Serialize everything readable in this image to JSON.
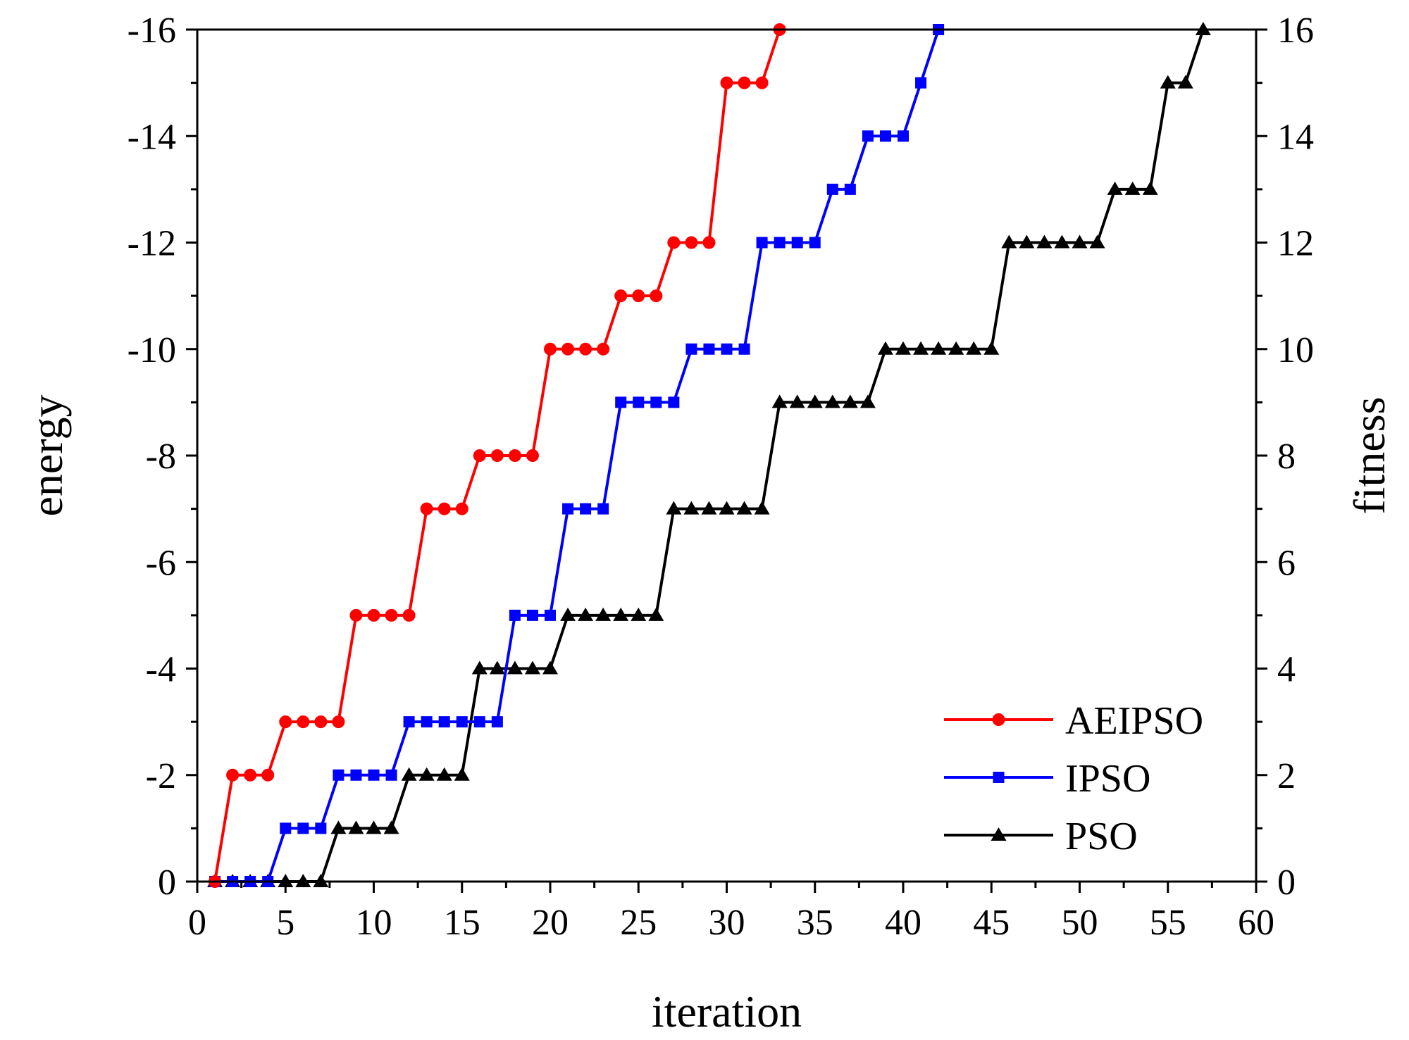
{
  "chart_data": {
    "type": "line",
    "xlabel": "iteration",
    "ylabel_left": "energy",
    "ylabel_right": "fitness",
    "xlim": [
      0,
      60
    ],
    "ylim": [
      0,
      16
    ],
    "x_ticks": [
      0,
      5,
      10,
      15,
      20,
      25,
      30,
      35,
      40,
      45,
      50,
      55,
      60
    ],
    "x_tick_labels": [
      "0",
      "5",
      "10",
      "15",
      "20",
      "25",
      "30",
      "35",
      "40",
      "45",
      "50",
      "55",
      "60"
    ],
    "left_ticks": [
      0,
      2,
      4,
      6,
      8,
      10,
      12,
      14,
      16
    ],
    "left_tick_labels": [
      "0",
      "-2",
      "-4",
      "-6",
      "-8",
      "-10",
      "-12",
      "-14",
      "-16"
    ],
    "right_ticks": [
      0,
      2,
      4,
      6,
      8,
      10,
      12,
      14,
      16
    ],
    "right_tick_labels": [
      "0",
      "2",
      "4",
      "6",
      "8",
      "10",
      "12",
      "14",
      "16"
    ],
    "grid": false,
    "legend_position": "bottom-right",
    "series": [
      {
        "name": "AEIPSO",
        "color": "#ff0000",
        "marker": "circle",
        "x": [
          1,
          2,
          3,
          4,
          5,
          6,
          7,
          8,
          9,
          10,
          11,
          12,
          13,
          14,
          15,
          16,
          17,
          18,
          19,
          20,
          21,
          22,
          23,
          24,
          25,
          26,
          27,
          28,
          29,
          30,
          31,
          32,
          33
        ],
        "y": [
          0,
          2,
          2,
          2,
          3,
          3,
          3,
          3,
          5,
          5,
          5,
          5,
          7,
          7,
          7,
          8,
          8,
          8,
          8,
          10,
          10,
          10,
          10,
          11,
          11,
          11,
          12,
          12,
          12,
          15,
          15,
          15,
          16
        ]
      },
      {
        "name": "IPSO",
        "color": "#0000ff",
        "marker": "square",
        "x": [
          1,
          2,
          3,
          4,
          5,
          6,
          7,
          8,
          9,
          10,
          11,
          12,
          13,
          14,
          15,
          16,
          17,
          18,
          19,
          20,
          21,
          22,
          23,
          24,
          25,
          26,
          27,
          28,
          29,
          30,
          31,
          32,
          33,
          34,
          35,
          36,
          37,
          38,
          39,
          40,
          41,
          42
        ],
        "y": [
          0,
          0,
          0,
          0,
          1,
          1,
          1,
          2,
          2,
          2,
          2,
          3,
          3,
          3,
          3,
          3,
          3,
          5,
          5,
          5,
          7,
          7,
          7,
          9,
          9,
          9,
          9,
          10,
          10,
          10,
          10,
          12,
          12,
          12,
          12,
          13,
          13,
          14,
          14,
          14,
          15,
          16
        ]
      },
      {
        "name": "PSO",
        "color": "#000000",
        "marker": "triangle",
        "x": [
          1,
          2,
          3,
          4,
          5,
          6,
          7,
          8,
          9,
          10,
          11,
          12,
          13,
          14,
          15,
          16,
          17,
          18,
          19,
          20,
          21,
          22,
          23,
          24,
          25,
          26,
          27,
          28,
          29,
          30,
          31,
          32,
          33,
          34,
          35,
          36,
          37,
          38,
          39,
          40,
          41,
          42,
          43,
          44,
          45,
          46,
          47,
          48,
          49,
          50,
          51,
          52,
          53,
          54,
          55,
          56,
          57
        ],
        "y": [
          0,
          0,
          0,
          0,
          0,
          0,
          0,
          1,
          1,
          1,
          1,
          2,
          2,
          2,
          2,
          4,
          4,
          4,
          4,
          4,
          5,
          5,
          5,
          5,
          5,
          5,
          7,
          7,
          7,
          7,
          7,
          7,
          9,
          9,
          9,
          9,
          9,
          9,
          10,
          10,
          10,
          10,
          10,
          10,
          10,
          12,
          12,
          12,
          12,
          12,
          12,
          13,
          13,
          13,
          15,
          15,
          16
        ]
      }
    ]
  }
}
